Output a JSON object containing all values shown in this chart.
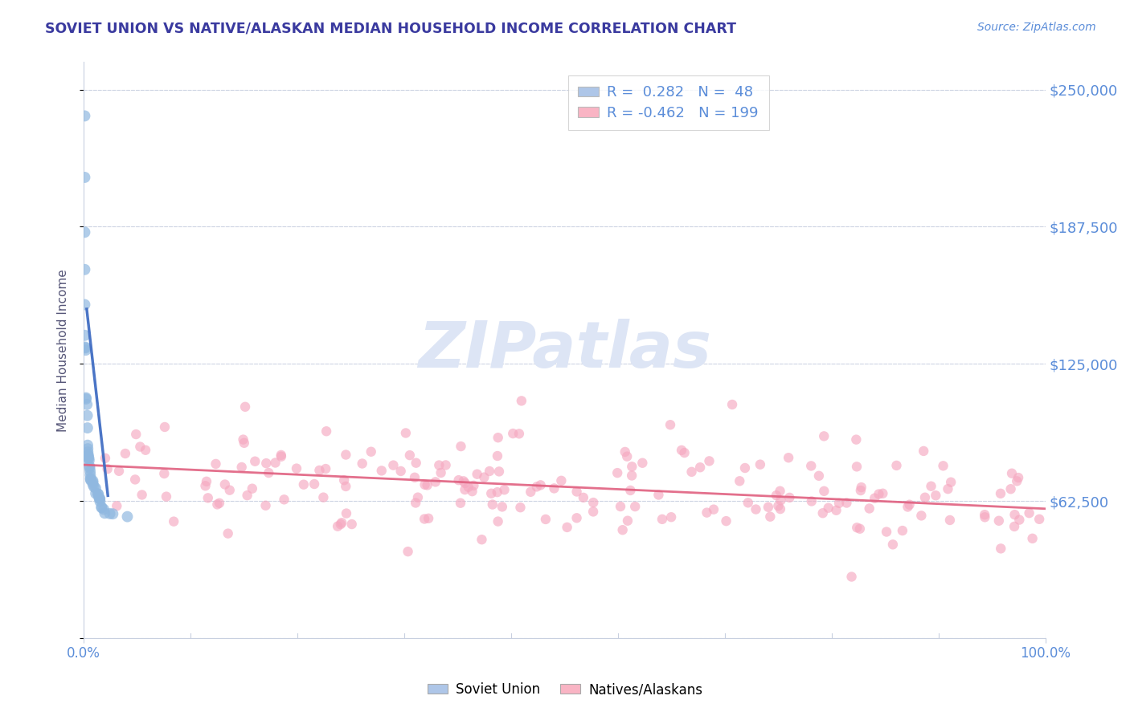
{
  "title": "SOVIET UNION VS NATIVE/ALASKAN MEDIAN HOUSEHOLD INCOME CORRELATION CHART",
  "source_text": "Source: ZipAtlas.com",
  "ylabel": "Median Household Income",
  "xlim": [
    0.0,
    1.0
  ],
  "ylim": [
    0,
    262500
  ],
  "yticks": [
    0,
    62500,
    125000,
    187500,
    250000
  ],
  "ytick_labels": [
    "",
    "$62,500",
    "$125,000",
    "$187,500",
    "$250,000"
  ],
  "title_color": "#3a3a9f",
  "axis_label_color": "#555577",
  "tick_color": "#5b8dd9",
  "grid_color": "#c8d0e0",
  "scatter_blue_color": "#90b8e0",
  "scatter_pink_color": "#f5a8c0",
  "trendline_blue_color": "#4470c4",
  "trendline_pink_color": "#e06080",
  "watermark_color": "#dde5f5",
  "legend_blue_color": "#aec6e8",
  "legend_pink_color": "#f9b4c4"
}
